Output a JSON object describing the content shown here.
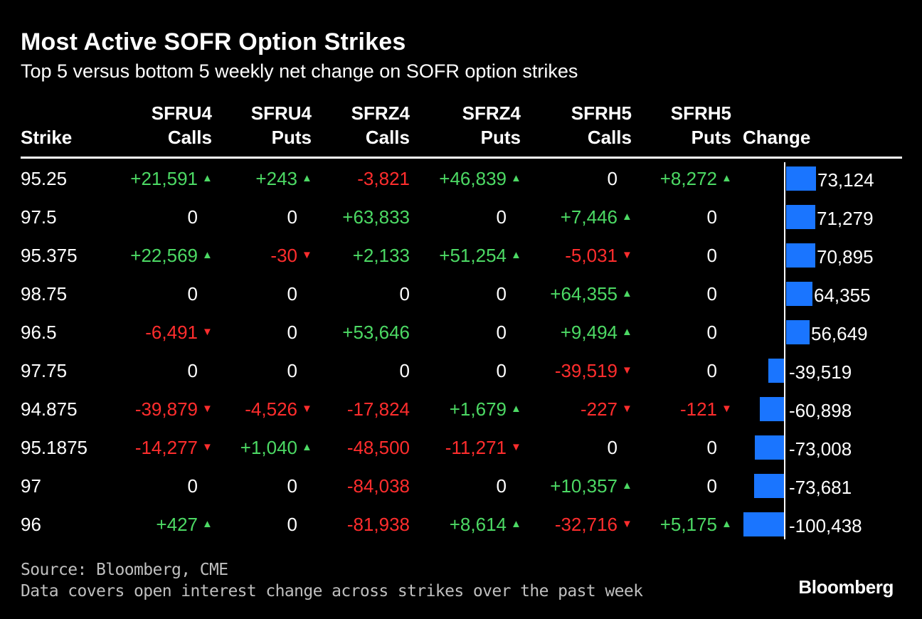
{
  "title": "Most Active SOFR Option Strikes",
  "subtitle": "Top 5 versus bottom 5 weekly net change on SOFR option strikes",
  "source_line1": "Source: Bloomberg, CME",
  "source_line2": "Data covers open interest change across strikes over the past week",
  "brand": "Bloomberg",
  "colors": {
    "positive": "#4cd964",
    "negative": "#ff2d2d",
    "bar": "#1a75ff",
    "background": "#000000"
  },
  "chart_data": {
    "type": "table",
    "title": "Most Active SOFR Option Strikes",
    "subtitle": "Top 5 versus bottom 5 weekly net change on SOFR option strikes",
    "columns": [
      {
        "line1": "",
        "line2": "Strike"
      },
      {
        "line1": "SFRU4",
        "line2": "Calls"
      },
      {
        "line1": "SFRU4",
        "line2": "Puts"
      },
      {
        "line1": "SFRZ4",
        "line2": "Calls"
      },
      {
        "line1": "SFRZ4",
        "line2": "Puts"
      },
      {
        "line1": "SFRH5",
        "line2": "Calls"
      },
      {
        "line1": "SFRH5",
        "line2": "Puts"
      },
      {
        "line1": "",
        "line2": "Change"
      }
    ],
    "rows": [
      {
        "strike": "95.25",
        "cells": [
          [
            "+21,591",
            "up"
          ],
          [
            "+243",
            "up"
          ],
          [
            "-3,821",
            ""
          ],
          [
            "+46,839",
            "up"
          ],
          [
            "0",
            ""
          ],
          [
            "+8,272",
            "up"
          ]
        ],
        "change": 73124,
        "change_label": "73,124"
      },
      {
        "strike": "97.5",
        "cells": [
          [
            "0",
            ""
          ],
          [
            "0",
            ""
          ],
          [
            "+63,833",
            ""
          ],
          [
            "0",
            ""
          ],
          [
            "+7,446",
            "up"
          ],
          [
            "0",
            ""
          ]
        ],
        "change": 71279,
        "change_label": "71,279"
      },
      {
        "strike": "95.375",
        "cells": [
          [
            "+22,569",
            "up"
          ],
          [
            "-30",
            "down"
          ],
          [
            "+2,133",
            ""
          ],
          [
            "+51,254",
            "up"
          ],
          [
            "-5,031",
            "down"
          ],
          [
            "0",
            ""
          ]
        ],
        "change": 70895,
        "change_label": "70,895"
      },
      {
        "strike": "98.75",
        "cells": [
          [
            "0",
            ""
          ],
          [
            "0",
            ""
          ],
          [
            "0",
            ""
          ],
          [
            "0",
            ""
          ],
          [
            "+64,355",
            "up"
          ],
          [
            "0",
            ""
          ]
        ],
        "change": 64355,
        "change_label": "64,355"
      },
      {
        "strike": "96.5",
        "cells": [
          [
            "-6,491",
            "down"
          ],
          [
            "0",
            ""
          ],
          [
            "+53,646",
            ""
          ],
          [
            "0",
            ""
          ],
          [
            "+9,494",
            "up"
          ],
          [
            "0",
            ""
          ]
        ],
        "change": 56649,
        "change_label": "56,649"
      },
      {
        "strike": "97.75",
        "cells": [
          [
            "0",
            ""
          ],
          [
            "0",
            ""
          ],
          [
            "0",
            ""
          ],
          [
            "0",
            ""
          ],
          [
            "-39,519",
            "down"
          ],
          [
            "0",
            ""
          ]
        ],
        "change": -39519,
        "change_label": "-39,519"
      },
      {
        "strike": "94.875",
        "cells": [
          [
            "-39,879",
            "down"
          ],
          [
            "-4,526",
            "down"
          ],
          [
            "-17,824",
            ""
          ],
          [
            "+1,679",
            "up"
          ],
          [
            "-227",
            "down"
          ],
          [
            "-121",
            "down"
          ]
        ],
        "change": -60898,
        "change_label": "-60,898"
      },
      {
        "strike": "95.1875",
        "cells": [
          [
            "-14,277",
            "down"
          ],
          [
            "+1,040",
            "up"
          ],
          [
            "-48,500",
            ""
          ],
          [
            "-11,271",
            "down"
          ],
          [
            "0",
            ""
          ],
          [
            "0",
            ""
          ]
        ],
        "change": -73008,
        "change_label": "-73,008"
      },
      {
        "strike": "97",
        "cells": [
          [
            "0",
            ""
          ],
          [
            "0",
            ""
          ],
          [
            "-84,038",
            ""
          ],
          [
            "0",
            ""
          ],
          [
            "+10,357",
            "up"
          ],
          [
            "0",
            ""
          ]
        ],
        "change": -73681,
        "change_label": "-73,681"
      },
      {
        "strike": "96",
        "cells": [
          [
            "+427",
            "up"
          ],
          [
            "0",
            ""
          ],
          [
            "-81,938",
            ""
          ],
          [
            "+8,614",
            "up"
          ],
          [
            "-32,716",
            "down"
          ],
          [
            "+5,175",
            "up"
          ]
        ],
        "change": -100438,
        "change_label": "-100,438"
      }
    ],
    "change_range": [
      -100438,
      73124
    ]
  }
}
